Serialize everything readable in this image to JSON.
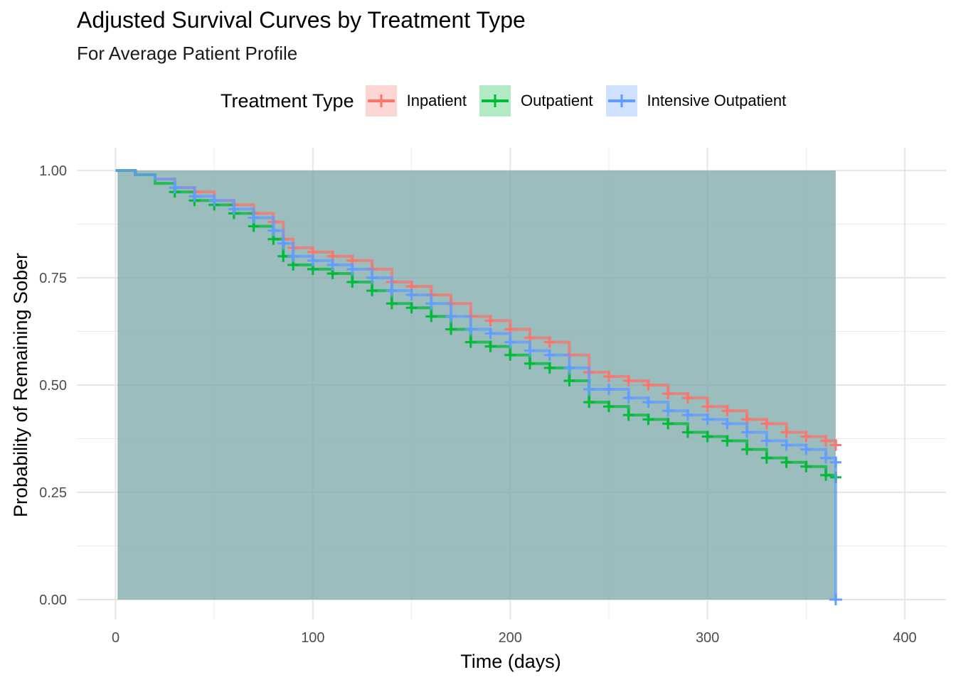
{
  "chart_data": {
    "type": "line",
    "title": "Adjusted Survival Curves by Treatment Type",
    "subtitle": "For Average Patient Profile",
    "xlabel": "Time (days)",
    "ylabel": "Probability of Remaining Sober",
    "xlim": [
      0,
      400
    ],
    "ylim": [
      0,
      1
    ],
    "x_ticks": [
      "0",
      "100",
      "200",
      "300",
      "400"
    ],
    "y_ticks": [
      "0.00",
      "0.25",
      "0.50",
      "0.75",
      "1.00"
    ],
    "grid": true,
    "legend": {
      "title": "Treatment Type",
      "position": "top"
    },
    "confidence_band": {
      "x": [
        1,
        365
      ],
      "lower": 0.0,
      "upper": 1.0,
      "color": "#7faaaa"
    },
    "series": [
      {
        "name": "Inpatient",
        "color": "#F8766D",
        "points": [
          [
            0,
            1.0
          ],
          [
            10,
            0.99
          ],
          [
            20,
            0.98
          ],
          [
            30,
            0.96
          ],
          [
            40,
            0.95
          ],
          [
            50,
            0.93
          ],
          [
            60,
            0.92
          ],
          [
            70,
            0.9
          ],
          [
            80,
            0.88
          ],
          [
            85,
            0.84
          ],
          [
            90,
            0.82
          ],
          [
            100,
            0.81
          ],
          [
            110,
            0.8
          ],
          [
            120,
            0.79
          ],
          [
            130,
            0.77
          ],
          [
            140,
            0.74
          ],
          [
            150,
            0.73
          ],
          [
            160,
            0.71
          ],
          [
            170,
            0.69
          ],
          [
            180,
            0.66
          ],
          [
            190,
            0.65
          ],
          [
            200,
            0.63
          ],
          [
            210,
            0.61
          ],
          [
            220,
            0.6
          ],
          [
            230,
            0.57
          ],
          [
            240,
            0.53
          ],
          [
            250,
            0.52
          ],
          [
            260,
            0.51
          ],
          [
            270,
            0.5
          ],
          [
            280,
            0.48
          ],
          [
            290,
            0.47
          ],
          [
            300,
            0.45
          ],
          [
            310,
            0.44
          ],
          [
            320,
            0.42
          ],
          [
            330,
            0.41
          ],
          [
            340,
            0.39
          ],
          [
            350,
            0.38
          ],
          [
            360,
            0.37
          ],
          [
            365,
            0.36
          ]
        ]
      },
      {
        "name": "Outpatient",
        "color": "#00BA38",
        "points": [
          [
            0,
            1.0
          ],
          [
            10,
            0.99
          ],
          [
            20,
            0.97
          ],
          [
            30,
            0.95
          ],
          [
            40,
            0.93
          ],
          [
            50,
            0.92
          ],
          [
            60,
            0.9
          ],
          [
            70,
            0.87
          ],
          [
            80,
            0.84
          ],
          [
            85,
            0.8
          ],
          [
            90,
            0.78
          ],
          [
            100,
            0.77
          ],
          [
            110,
            0.76
          ],
          [
            120,
            0.74
          ],
          [
            130,
            0.72
          ],
          [
            140,
            0.69
          ],
          [
            150,
            0.68
          ],
          [
            160,
            0.66
          ],
          [
            170,
            0.63
          ],
          [
            180,
            0.6
          ],
          [
            190,
            0.59
          ],
          [
            200,
            0.57
          ],
          [
            210,
            0.55
          ],
          [
            220,
            0.54
          ],
          [
            230,
            0.51
          ],
          [
            240,
            0.46
          ],
          [
            250,
            0.45
          ],
          [
            260,
            0.43
          ],
          [
            270,
            0.42
          ],
          [
            280,
            0.41
          ],
          [
            290,
            0.39
          ],
          [
            300,
            0.38
          ],
          [
            310,
            0.37
          ],
          [
            320,
            0.35
          ],
          [
            330,
            0.33
          ],
          [
            340,
            0.32
          ],
          [
            350,
            0.31
          ],
          [
            360,
            0.29
          ],
          [
            365,
            0.285
          ]
        ]
      },
      {
        "name": "Intensive Outpatient",
        "color": "#619CFF",
        "points": [
          [
            0,
            1.0
          ],
          [
            10,
            0.99
          ],
          [
            20,
            0.98
          ],
          [
            30,
            0.96
          ],
          [
            40,
            0.94
          ],
          [
            50,
            0.93
          ],
          [
            60,
            0.91
          ],
          [
            70,
            0.89
          ],
          [
            80,
            0.86
          ],
          [
            85,
            0.83
          ],
          [
            90,
            0.8
          ],
          [
            100,
            0.79
          ],
          [
            110,
            0.78
          ],
          [
            120,
            0.77
          ],
          [
            130,
            0.75
          ],
          [
            140,
            0.72
          ],
          [
            150,
            0.71
          ],
          [
            160,
            0.69
          ],
          [
            170,
            0.66
          ],
          [
            180,
            0.63
          ],
          [
            190,
            0.62
          ],
          [
            200,
            0.6
          ],
          [
            210,
            0.58
          ],
          [
            220,
            0.57
          ],
          [
            230,
            0.54
          ],
          [
            240,
            0.49
          ],
          [
            250,
            0.49
          ],
          [
            260,
            0.47
          ],
          [
            270,
            0.46
          ],
          [
            280,
            0.44
          ],
          [
            290,
            0.43
          ],
          [
            300,
            0.42
          ],
          [
            310,
            0.41
          ],
          [
            320,
            0.39
          ],
          [
            330,
            0.37
          ],
          [
            340,
            0.36
          ],
          [
            350,
            0.35
          ],
          [
            360,
            0.33
          ],
          [
            365,
            0.32
          ],
          [
            365,
            0.0
          ]
        ]
      }
    ]
  }
}
